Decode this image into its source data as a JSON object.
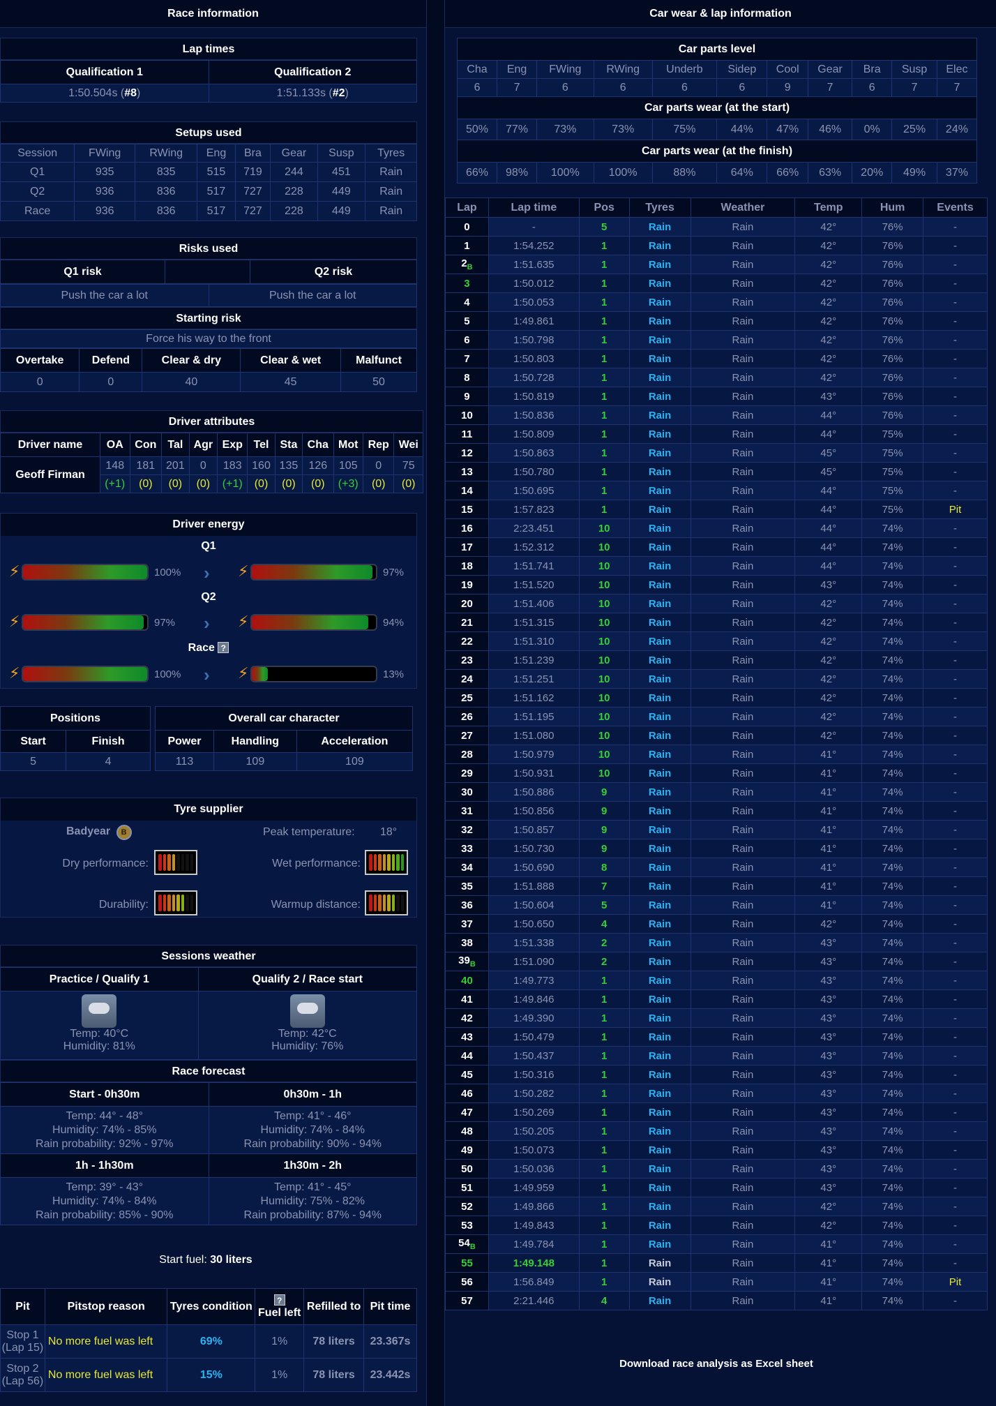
{
  "left": {
    "title": "Race information",
    "lap_times": {
      "header": "Lap times",
      "col1": "Qualification 1",
      "col2": "Qualification 2",
      "q1_time": "1:50.504s",
      "q1_pos": "#8",
      "q2_time": "1:51.133s",
      "q2_pos": "#2"
    },
    "setups": {
      "header": "Setups used",
      "columns": [
        "Session",
        "FWing",
        "RWing",
        "Eng",
        "Bra",
        "Gear",
        "Susp",
        "Tyres"
      ],
      "rows": [
        [
          "Q1",
          "935",
          "835",
          "515",
          "719",
          "244",
          "451",
          "Rain"
        ],
        [
          "Q2",
          "936",
          "836",
          "517",
          "727",
          "228",
          "449",
          "Rain"
        ],
        [
          "Race",
          "936",
          "836",
          "517",
          "727",
          "228",
          "449",
          "Rain"
        ]
      ]
    },
    "risks": {
      "header": "Risks used",
      "q1_label": "Q1 risk",
      "q2_label": "Q2 risk",
      "q1_value": "Push the car a lot",
      "q2_value": "Push the car a lot",
      "starting_header": "Starting risk",
      "starting_value": "Force his way to the front",
      "columns": [
        "Overtake",
        "Defend",
        "Clear & dry",
        "Clear & wet",
        "Malfunct"
      ],
      "values": [
        "0",
        "0",
        "40",
        "45",
        "50"
      ]
    },
    "driver": {
      "header": "Driver attributes",
      "columns": [
        "Driver name",
        "OA",
        "Con",
        "Tal",
        "Agr",
        "Exp",
        "Tel",
        "Sta",
        "Cha",
        "Mot",
        "Rep",
        "Wei"
      ],
      "name": "Geoff Firman",
      "values": [
        "148",
        "181",
        "201",
        "0",
        "183",
        "160",
        "135",
        "126",
        "105",
        "0",
        "75"
      ],
      "changes": [
        "(+1)",
        "(0)",
        "(0)",
        "(0)",
        "(+1)",
        "(0)",
        "(0)",
        "(0)",
        "(+3)",
        "(0)",
        "(0)"
      ]
    },
    "energy": {
      "header": "Driver energy",
      "q1_label": "Q1",
      "q2_label": "Q2",
      "race_label": "Race",
      "help_icon": "?",
      "q1_start": "100%",
      "q1_end": "97%",
      "q2_start": "97%",
      "q2_end": "94%",
      "race_start": "100%",
      "race_end": "13%",
      "levels": {
        "q1_start": 1.0,
        "q1_end": 0.97,
        "q2_start": 0.97,
        "q2_end": 0.94,
        "race_start": 1.0,
        "race_end": 0.13
      }
    },
    "positions": {
      "header": "Positions",
      "start_label": "Start",
      "finish_label": "Finish",
      "start": "5",
      "finish": "4"
    },
    "car_character": {
      "header": "Overall car character",
      "labels": [
        "Power",
        "Handling",
        "Acceleration"
      ],
      "values": [
        "113",
        "109",
        "109"
      ]
    },
    "tyre": {
      "header": "Tyre supplier",
      "brand": "Badyear",
      "brand_badge": "B",
      "peak_label": "Peak temperature:",
      "peak_value": "18°",
      "dry_label": "Dry performance:",
      "wet_label": "Wet performance:",
      "durability_label": "Durability:",
      "warmup_label": "Warmup distance:",
      "dry_level": 4,
      "wet_level": 8,
      "durability_level": 6,
      "warmup_level": 6
    },
    "weather": {
      "header": "Sessions weather",
      "col1": "Practice / Qualify 1",
      "col2": "Qualify 2 / Race start",
      "icon": "cloud-rain-icon",
      "s1_temp": "Temp: 40°C",
      "s1_hum": "Humidity: 81%",
      "s2_temp": "Temp: 42°C",
      "s2_hum": "Humidity: 76%",
      "forecast_header": "Race forecast",
      "forecast": [
        {
          "label": "Start - 0h30m",
          "temp": "Temp: 44° - 48°",
          "hum": "Humidity: 74% - 85%",
          "rain": "Rain probability: 92% - 97%"
        },
        {
          "label": "0h30m - 1h",
          "temp": "Temp: 41° - 46°",
          "hum": "Humidity: 74% - 84%",
          "rain": "Rain probability: 90% - 94%"
        },
        {
          "label": "1h - 1h30m",
          "temp": "Temp: 39° - 43°",
          "hum": "Humidity: 74% - 84%",
          "rain": "Rain probability: 85% - 90%"
        },
        {
          "label": "1h30m - 2h",
          "temp": "Temp: 41° - 45°",
          "hum": "Humidity: 75% - 82%",
          "rain": "Rain probability: 87% - 94%"
        }
      ]
    },
    "fuel": {
      "label": "Start fuel:",
      "value": "30 liters"
    },
    "pits": {
      "columns": [
        "Pit",
        "Pitstop reason",
        "Tyres condition",
        "Fuel left",
        "Refilled to",
        "Pit time"
      ],
      "help_icon": "?",
      "rows": [
        {
          "pit": "Stop 1",
          "lap": "(Lap 15)",
          "reason": "No more fuel was left",
          "tyres": "69%",
          "fuel": "1%",
          "refill": "78 liters",
          "time": "23.367s"
        },
        {
          "pit": "Stop 2",
          "lap": "(Lap 56)",
          "reason": "No more fuel was left",
          "tyres": "15%",
          "fuel": "1%",
          "refill": "78 liters",
          "time": "23.442s"
        }
      ]
    }
  },
  "right": {
    "title": "Car wear & lap information",
    "parts": {
      "level_header": "Car parts level",
      "columns": [
        "Cha",
        "Eng",
        "FWing",
        "RWing",
        "Underb",
        "Sidep",
        "Cool",
        "Gear",
        "Bra",
        "Susp",
        "Elec"
      ],
      "levels": [
        "6",
        "7",
        "6",
        "6",
        "6",
        "6",
        "9",
        "7",
        "6",
        "7",
        "7"
      ],
      "start_header": "Car parts wear (at the start)",
      "start_wear": [
        "50%",
        "77%",
        "73%",
        "73%",
        "75%",
        "44%",
        "47%",
        "46%",
        "0%",
        "25%",
        "24%"
      ],
      "finish_header": "Car parts wear (at the finish)",
      "finish_wear": [
        "66%",
        "98%",
        "100%",
        "100%",
        "88%",
        "64%",
        "66%",
        "63%",
        "20%",
        "49%",
        "37%"
      ]
    },
    "laps": {
      "columns": [
        "Lap",
        "Lap time",
        "Pos",
        "Tyres",
        "Weather",
        "Temp",
        "Hum",
        "Events"
      ],
      "rows": [
        [
          "0",
          "-",
          "5",
          "Rain",
          "Rain",
          "42°",
          "76%",
          "-"
        ],
        [
          "1",
          "1:54.252",
          "1",
          "Rain",
          "Rain",
          "42°",
          "76%",
          "-"
        ],
        [
          "2",
          "1:51.635",
          "1",
          "Rain",
          "Rain",
          "42°",
          "76%",
          "-"
        ],
        [
          "3",
          "1:50.012",
          "1",
          "Rain",
          "Rain",
          "42°",
          "76%",
          "-"
        ],
        [
          "4",
          "1:50.053",
          "1",
          "Rain",
          "Rain",
          "42°",
          "76%",
          "-"
        ],
        [
          "5",
          "1:49.861",
          "1",
          "Rain",
          "Rain",
          "42°",
          "76%",
          "-"
        ],
        [
          "6",
          "1:50.798",
          "1",
          "Rain",
          "Rain",
          "42°",
          "76%",
          "-"
        ],
        [
          "7",
          "1:50.803",
          "1",
          "Rain",
          "Rain",
          "42°",
          "76%",
          "-"
        ],
        [
          "8",
          "1:50.728",
          "1",
          "Rain",
          "Rain",
          "42°",
          "76%",
          "-"
        ],
        [
          "9",
          "1:50.819",
          "1",
          "Rain",
          "Rain",
          "43°",
          "76%",
          "-"
        ],
        [
          "10",
          "1:50.836",
          "1",
          "Rain",
          "Rain",
          "44°",
          "76%",
          "-"
        ],
        [
          "11",
          "1:50.809",
          "1",
          "Rain",
          "Rain",
          "44°",
          "75%",
          "-"
        ],
        [
          "12",
          "1:50.863",
          "1",
          "Rain",
          "Rain",
          "45°",
          "75%",
          "-"
        ],
        [
          "13",
          "1:50.780",
          "1",
          "Rain",
          "Rain",
          "45°",
          "75%",
          "-"
        ],
        [
          "14",
          "1:50.695",
          "1",
          "Rain",
          "Rain",
          "44°",
          "75%",
          "-"
        ],
        [
          "15",
          "1:57.823",
          "1",
          "Rain",
          "Rain",
          "44°",
          "75%",
          "Pit"
        ],
        [
          "16",
          "2:23.451",
          "10",
          "Rain",
          "Rain",
          "44°",
          "74%",
          "-"
        ],
        [
          "17",
          "1:52.312",
          "10",
          "Rain",
          "Rain",
          "44°",
          "74%",
          "-"
        ],
        [
          "18",
          "1:51.741",
          "10",
          "Rain",
          "Rain",
          "44°",
          "74%",
          "-"
        ],
        [
          "19",
          "1:51.520",
          "10",
          "Rain",
          "Rain",
          "43°",
          "74%",
          "-"
        ],
        [
          "20",
          "1:51.406",
          "10",
          "Rain",
          "Rain",
          "42°",
          "74%",
          "-"
        ],
        [
          "21",
          "1:51.315",
          "10",
          "Rain",
          "Rain",
          "42°",
          "74%",
          "-"
        ],
        [
          "22",
          "1:51.310",
          "10",
          "Rain",
          "Rain",
          "42°",
          "74%",
          "-"
        ],
        [
          "23",
          "1:51.239",
          "10",
          "Rain",
          "Rain",
          "42°",
          "74%",
          "-"
        ],
        [
          "24",
          "1:51.251",
          "10",
          "Rain",
          "Rain",
          "42°",
          "74%",
          "-"
        ],
        [
          "25",
          "1:51.162",
          "10",
          "Rain",
          "Rain",
          "42°",
          "74%",
          "-"
        ],
        [
          "26",
          "1:51.195",
          "10",
          "Rain",
          "Rain",
          "42°",
          "74%",
          "-"
        ],
        [
          "27",
          "1:51.080",
          "10",
          "Rain",
          "Rain",
          "42°",
          "74%",
          "-"
        ],
        [
          "28",
          "1:50.979",
          "10",
          "Rain",
          "Rain",
          "41°",
          "74%",
          "-"
        ],
        [
          "29",
          "1:50.931",
          "10",
          "Rain",
          "Rain",
          "41°",
          "74%",
          "-"
        ],
        [
          "30",
          "1:50.886",
          "9",
          "Rain",
          "Rain",
          "41°",
          "74%",
          "-"
        ],
        [
          "31",
          "1:50.856",
          "9",
          "Rain",
          "Rain",
          "41°",
          "74%",
          "-"
        ],
        [
          "32",
          "1:50.857",
          "9",
          "Rain",
          "Rain",
          "41°",
          "74%",
          "-"
        ],
        [
          "33",
          "1:50.730",
          "9",
          "Rain",
          "Rain",
          "41°",
          "74%",
          "-"
        ],
        [
          "34",
          "1:50.690",
          "8",
          "Rain",
          "Rain",
          "41°",
          "74%",
          "-"
        ],
        [
          "35",
          "1:51.888",
          "7",
          "Rain",
          "Rain",
          "41°",
          "74%",
          "-"
        ],
        [
          "36",
          "1:50.604",
          "5",
          "Rain",
          "Rain",
          "41°",
          "74%",
          "-"
        ],
        [
          "37",
          "1:50.650",
          "4",
          "Rain",
          "Rain",
          "42°",
          "74%",
          "-"
        ],
        [
          "38",
          "1:51.338",
          "2",
          "Rain",
          "Rain",
          "43°",
          "74%",
          "-"
        ],
        [
          "39",
          "1:51.090",
          "2",
          "Rain",
          "Rain",
          "43°",
          "74%",
          "-"
        ],
        [
          "40",
          "1:49.773",
          "1",
          "Rain",
          "Rain",
          "43°",
          "74%",
          "-"
        ],
        [
          "41",
          "1:49.846",
          "1",
          "Rain",
          "Rain",
          "43°",
          "74%",
          "-"
        ],
        [
          "42",
          "1:49.390",
          "1",
          "Rain",
          "Rain",
          "43°",
          "74%",
          "-"
        ],
        [
          "43",
          "1:50.479",
          "1",
          "Rain",
          "Rain",
          "43°",
          "74%",
          "-"
        ],
        [
          "44",
          "1:50.437",
          "1",
          "Rain",
          "Rain",
          "43°",
          "74%",
          "-"
        ],
        [
          "45",
          "1:50.316",
          "1",
          "Rain",
          "Rain",
          "43°",
          "74%",
          "-"
        ],
        [
          "46",
          "1:50.282",
          "1",
          "Rain",
          "Rain",
          "43°",
          "74%",
          "-"
        ],
        [
          "47",
          "1:50.269",
          "1",
          "Rain",
          "Rain",
          "43°",
          "74%",
          "-"
        ],
        [
          "48",
          "1:50.205",
          "1",
          "Rain",
          "Rain",
          "43°",
          "74%",
          "-"
        ],
        [
          "49",
          "1:50.073",
          "1",
          "Rain",
          "Rain",
          "43°",
          "74%",
          "-"
        ],
        [
          "50",
          "1:50.036",
          "1",
          "Rain",
          "Rain",
          "43°",
          "74%",
          "-"
        ],
        [
          "51",
          "1:49.959",
          "1",
          "Rain",
          "Rain",
          "43°",
          "74%",
          "-"
        ],
        [
          "52",
          "1:49.866",
          "1",
          "Rain",
          "Rain",
          "42°",
          "74%",
          "-"
        ],
        [
          "53",
          "1:49.843",
          "1",
          "Rain",
          "Rain",
          "42°",
          "74%",
          "-"
        ],
        [
          "54",
          "1:49.784",
          "1",
          "Rain",
          "Rain",
          "41°",
          "74%",
          "-"
        ],
        [
          "55",
          "1:49.148",
          "1",
          "Rain",
          "Rain",
          "41°",
          "74%",
          "-"
        ],
        [
          "56",
          "1:56.849",
          "1",
          "Rain",
          "Rain",
          "41°",
          "74%",
          "Pit"
        ],
        [
          "57",
          "2:21.446",
          "4",
          "Rain",
          "Rain",
          "41°",
          "74%",
          "-"
        ]
      ],
      "badge_laps": [
        "2",
        "39",
        "54"
      ],
      "badge_text": "B",
      "green_laps": [
        "3",
        "40",
        "55"
      ],
      "fastest_lap": "55",
      "dry_tyre_laps": [
        "55",
        "56"
      ]
    },
    "download_label": "Download race analysis as Excel sheet"
  }
}
